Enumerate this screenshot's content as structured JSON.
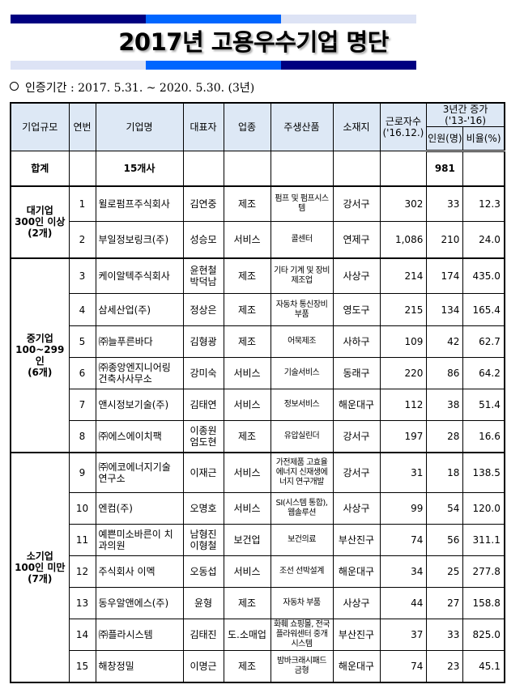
{
  "title": "2017년 고용우수기업 명단",
  "period": "인증기간 : 2017. 5.31. ~ 2020. 5.30. (3년)",
  "colors": {
    "band_dark": "#000080",
    "band_mid": "#0066ff",
    "band_light": "#dde3f5",
    "header_bg": "#dde8f5"
  },
  "headers": {
    "size": "기업규모",
    "no": "연번",
    "name": "기업명",
    "ceo": "대표자",
    "industry": "업종",
    "product": "주생산품",
    "location": "소재지",
    "workers": "근로자수",
    "workers_sub": "('16.12.)",
    "increase": "3년간 증가",
    "increase_sub": "('13-'16)",
    "persons": "인원(명)",
    "ratio": "비율(%)"
  },
  "total": {
    "label": "합계",
    "count": "15개사",
    "persons": "981"
  },
  "groups": [
    {
      "label1": "대기업",
      "label2": "300인 이상",
      "label3": "(2개)"
    },
    {
      "label1": "중기업",
      "label2": "100~299인",
      "label3": "(6개)"
    },
    {
      "label1": "소기업",
      "label2": "100인 미만",
      "label3": "(7개)"
    }
  ],
  "rows": [
    {
      "no": "1",
      "name": "윌로펌프주식회사",
      "ceo": "김연중",
      "industry": "제조",
      "product": "펌프 및 펌프시스템",
      "location": "강서구",
      "workers": "302",
      "persons": "33",
      "ratio": "12.3"
    },
    {
      "no": "2",
      "name": "부일정보링크(주)",
      "ceo": "성승모",
      "industry": "서비스",
      "product": "콜센터",
      "location": "연제구",
      "workers": "1,086",
      "persons": "210",
      "ratio": "24.0"
    },
    {
      "no": "3",
      "name": "케이알텍주식회사",
      "ceo": "윤현철 박덕남",
      "industry": "제조",
      "product": "기타 기계 및 장비제조업",
      "location": "사상구",
      "workers": "214",
      "persons": "174",
      "ratio": "435.0"
    },
    {
      "no": "4",
      "name": "삼세산업(주)",
      "ceo": "정상은",
      "industry": "제조",
      "product": "자동차 통신장비 부품",
      "location": "영도구",
      "workers": "215",
      "persons": "134",
      "ratio": "165.4"
    },
    {
      "no": "5",
      "name": "㈜늘푸른바다",
      "ceo": "김형광",
      "industry": "제조",
      "product": "어묵제조",
      "location": "사하구",
      "workers": "109",
      "persons": "42",
      "ratio": "62.7"
    },
    {
      "no": "6",
      "name": "㈜종앙엔지니어링 건축사사무소",
      "ceo": "강미숙",
      "industry": "서비스",
      "product": "기술서비스",
      "location": "동래구",
      "workers": "220",
      "persons": "86",
      "ratio": "64.2"
    },
    {
      "no": "7",
      "name": "앤시정보기술(주)",
      "ceo": "김태연",
      "industry": "서비스",
      "product": "정보서비스",
      "location": "해운대구",
      "workers": "112",
      "persons": "38",
      "ratio": "51.4"
    },
    {
      "no": "8",
      "name": "㈜에스에이치팩",
      "ceo": "이종원 엄도현",
      "industry": "제조",
      "product": "유압실린더",
      "location": "강서구",
      "workers": "197",
      "persons": "28",
      "ratio": "16.6"
    },
    {
      "no": "9",
      "name": "㈜에코에너지기술 연구소",
      "ceo": "이재근",
      "industry": "서비스",
      "product": "가전제품 고효율에너지 신재생에너지 연구개발",
      "location": "강서구",
      "workers": "31",
      "persons": "18",
      "ratio": "138.5"
    },
    {
      "no": "10",
      "name": "엔컴(주)",
      "ceo": "오명호",
      "industry": "서비스",
      "product": "SI(시스템 통합), 웹솔루션",
      "location": "사상구",
      "workers": "99",
      "persons": "54",
      "ratio": "120.0"
    },
    {
      "no": "11",
      "name": "예쁜미소바른이 치과의원",
      "ceo": "남형진 이형철",
      "industry": "보건업",
      "product": "보건의료",
      "location": "부산진구",
      "workers": "74",
      "persons": "56",
      "ratio": "311.1"
    },
    {
      "no": "12",
      "name": "주식회사 이멕",
      "ceo": "오동섭",
      "industry": "서비스",
      "product": "조선 선박설계",
      "location": "해운대구",
      "workers": "34",
      "persons": "25",
      "ratio": "277.8"
    },
    {
      "no": "13",
      "name": "동우알앤에스(주)",
      "ceo": "윤형",
      "industry": "제조",
      "product": "자동차 부품",
      "location": "사상구",
      "workers": "44",
      "persons": "27",
      "ratio": "158.8"
    },
    {
      "no": "14",
      "name": "㈜플라시스템",
      "ceo": "김태진",
      "industry": "도.소매업",
      "product": "화훼 쇼핑몰, 전국플라워센터 중개시스템",
      "location": "부산진구",
      "workers": "37",
      "persons": "33",
      "ratio": "825.0"
    },
    {
      "no": "15",
      "name": "해창정밀",
      "ceo": "이명근",
      "industry": "제조",
      "product": "밤바크래시패드 금형",
      "location": "해운대구",
      "workers": "74",
      "persons": "23",
      "ratio": "45.1"
    }
  ]
}
